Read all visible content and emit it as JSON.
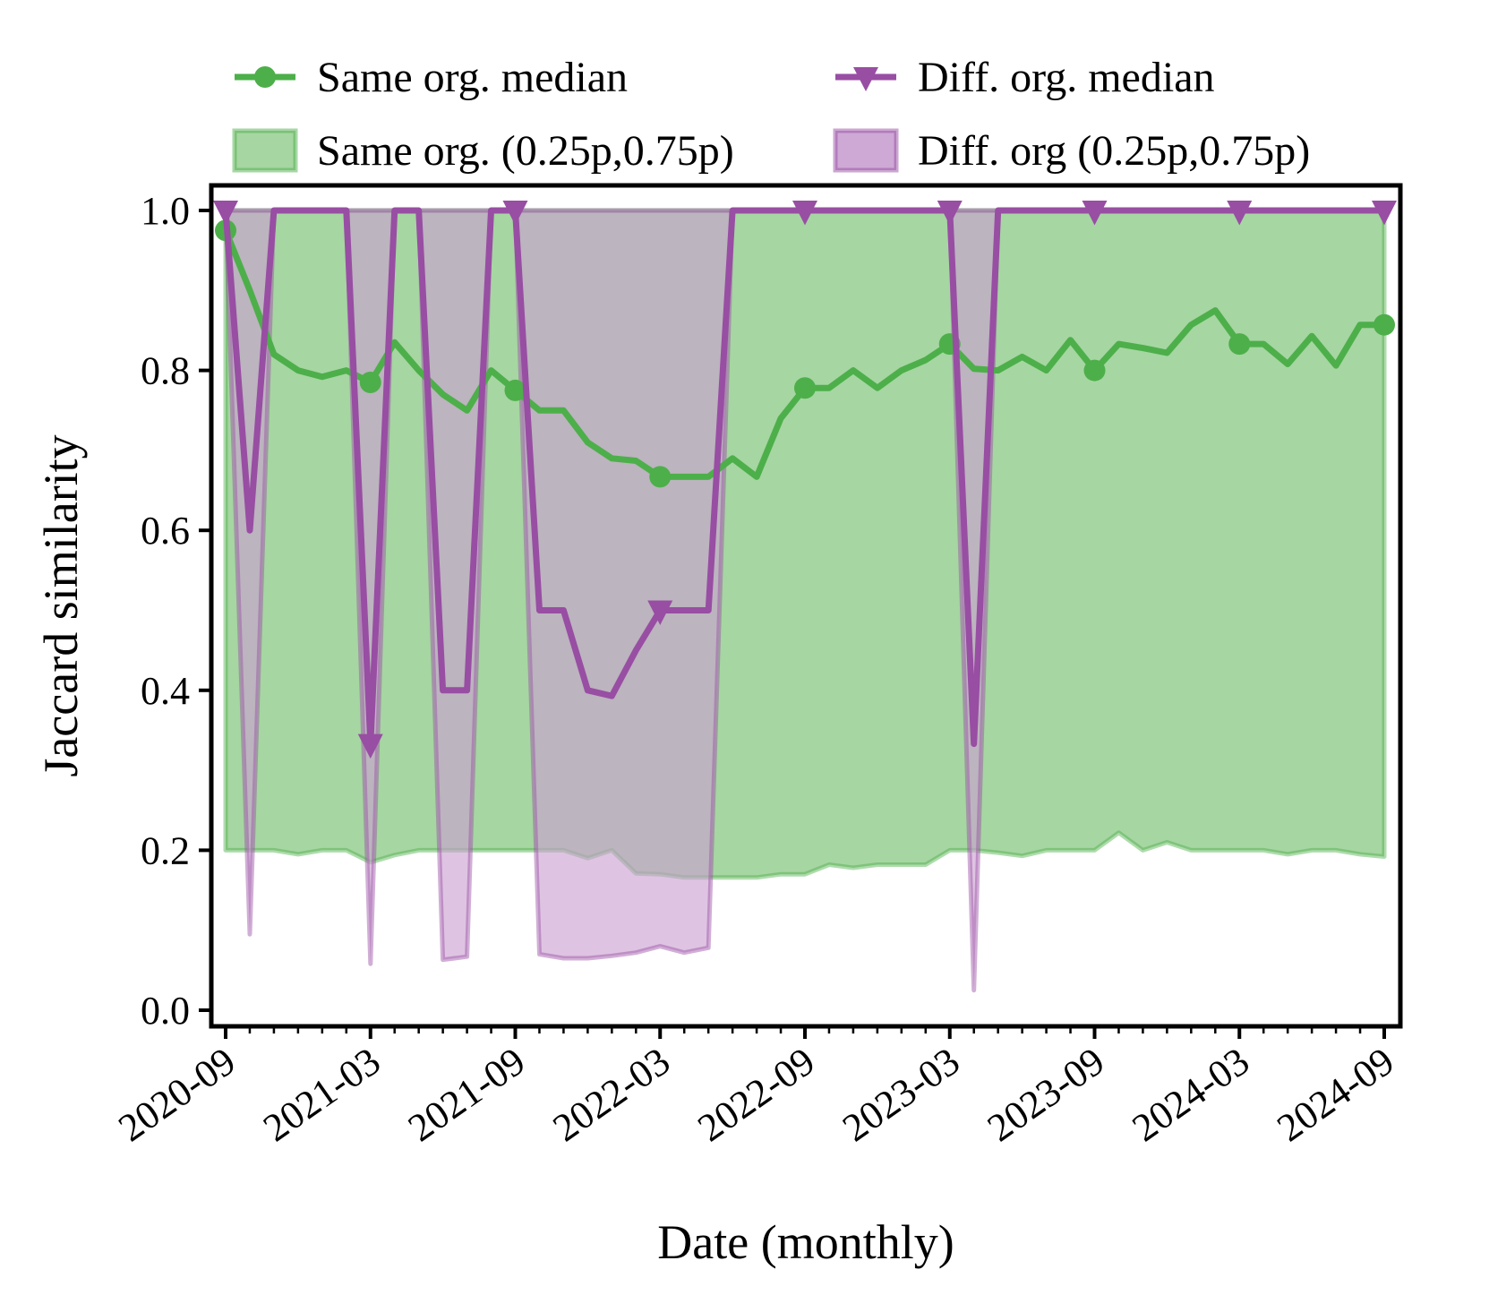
{
  "chart_data": {
    "type": "line",
    "title": "",
    "xlabel": "Date (monthly)",
    "ylabel": "Jaccard similarity",
    "ylim": [
      -0.02,
      1.03
    ],
    "yticks": [
      0.0,
      0.2,
      0.4,
      0.6,
      0.8,
      1.0
    ],
    "ytick_labels": [
      "0.0",
      "0.2",
      "0.4",
      "0.6",
      "0.8",
      "1.0"
    ],
    "xticks": [
      0,
      6,
      12,
      18,
      24,
      30,
      36,
      42,
      48
    ],
    "xtick_labels": [
      "2020-09",
      "2021-03",
      "2021-09",
      "2022-03",
      "2022-09",
      "2023-03",
      "2023-09",
      "2024-03",
      "2024-09"
    ],
    "x_month_index": [
      0,
      1,
      2,
      3,
      4,
      5,
      6,
      7,
      8,
      9,
      10,
      11,
      12,
      13,
      14,
      15,
      16,
      17,
      18,
      19,
      20,
      21,
      22,
      23,
      24,
      25,
      26,
      27,
      28,
      29,
      30,
      31,
      32,
      33,
      34,
      35,
      36,
      37,
      38,
      39,
      40,
      41,
      42,
      43,
      44,
      45,
      46,
      47,
      48
    ],
    "legend": {
      "position": "top",
      "entries": [
        "Same org. median",
        "Diff. org. median",
        "Same org. (0.25p,0.75p)",
        "Diff. org (0.25p,0.75p)"
      ]
    },
    "colors": {
      "same": "#4daf4a",
      "same_fill": "#a6d6a2",
      "diff": "#984ea3",
      "diff_fill": "#c9a0d0"
    },
    "series": [
      {
        "name": "Same org. median",
        "color": "#4daf4a",
        "marker": "circle",
        "markevery": 6,
        "values": [
          0.975,
          0.9,
          0.82,
          0.8,
          0.792,
          0.8,
          0.785,
          0.835,
          0.8,
          0.77,
          0.75,
          0.8,
          0.775,
          0.75,
          0.75,
          0.71,
          0.69,
          0.687,
          0.667,
          0.667,
          0.667,
          0.69,
          0.667,
          0.74,
          0.778,
          0.778,
          0.8,
          0.778,
          0.8,
          0.813,
          0.833,
          0.802,
          0.8,
          0.817,
          0.8,
          0.838,
          0.8,
          0.833,
          0.828,
          0.822,
          0.857,
          0.875,
          0.833,
          0.833,
          0.808,
          0.843,
          0.806,
          0.857,
          0.857
        ]
      },
      {
        "name": "Diff. org. median",
        "color": "#984ea3",
        "marker": "triangle-down",
        "markevery": 6,
        "values": [
          1.0,
          0.6,
          1.0,
          1.0,
          1.0,
          1.0,
          0.333,
          1.0,
          1.0,
          0.4,
          0.4,
          1.0,
          1.0,
          0.5,
          0.5,
          0.4,
          0.393,
          0.45,
          0.5,
          0.5,
          0.5,
          1.0,
          1.0,
          1.0,
          1.0,
          1.0,
          1.0,
          1.0,
          1.0,
          1.0,
          1.0,
          0.333,
          1.0,
          1.0,
          1.0,
          1.0,
          1.0,
          1.0,
          1.0,
          1.0,
          1.0,
          1.0,
          1.0,
          1.0,
          1.0,
          1.0,
          1.0,
          1.0,
          1.0
        ]
      }
    ],
    "bands": [
      {
        "name": "Same org. (0.25p,0.75p)",
        "color": "#4daf4a",
        "fill": "#a6d6a2",
        "lower": [
          0.2,
          0.2,
          0.2,
          0.195,
          0.2,
          0.2,
          0.185,
          0.194,
          0.2,
          0.2,
          0.2,
          0.2,
          0.2,
          0.2,
          0.2,
          0.19,
          0.2,
          0.171,
          0.17,
          0.166,
          0.166,
          0.166,
          0.166,
          0.17,
          0.17,
          0.182,
          0.178,
          0.182,
          0.182,
          0.182,
          0.2,
          0.2,
          0.197,
          0.193,
          0.2,
          0.2,
          0.2,
          0.222,
          0.2,
          0.21,
          0.2,
          0.2,
          0.2,
          0.2,
          0.195,
          0.2,
          0.2,
          0.195,
          0.192
        ],
        "upper": [
          1.0,
          1.0,
          1.0,
          1.0,
          1.0,
          1.0,
          1.0,
          1.0,
          1.0,
          1.0,
          1.0,
          1.0,
          1.0,
          1.0,
          1.0,
          1.0,
          1.0,
          1.0,
          1.0,
          1.0,
          1.0,
          1.0,
          1.0,
          1.0,
          1.0,
          1.0,
          1.0,
          1.0,
          1.0,
          1.0,
          1.0,
          1.0,
          1.0,
          1.0,
          1.0,
          1.0,
          1.0,
          1.0,
          1.0,
          1.0,
          1.0,
          1.0,
          1.0,
          1.0,
          1.0,
          1.0,
          1.0,
          1.0,
          1.0
        ]
      },
      {
        "name": "Diff. org (0.25p,0.75p)",
        "color": "#984ea3",
        "fill": "#c9a0d0",
        "lower": [
          1.0,
          0.095,
          1.0,
          1.0,
          1.0,
          1.0,
          0.058,
          1.0,
          1.0,
          0.063,
          0.067,
          1.0,
          1.0,
          0.07,
          0.065,
          0.065,
          0.068,
          0.072,
          0.08,
          0.072,
          0.078,
          1.0,
          1.0,
          1.0,
          1.0,
          1.0,
          1.0,
          1.0,
          1.0,
          1.0,
          1.0,
          0.025,
          1.0,
          1.0,
          1.0,
          1.0,
          1.0,
          1.0,
          1.0,
          1.0,
          1.0,
          1.0,
          1.0,
          1.0,
          1.0,
          1.0,
          1.0,
          1.0,
          1.0
        ],
        "upper": [
          1.0,
          1.0,
          1.0,
          1.0,
          1.0,
          1.0,
          1.0,
          1.0,
          1.0,
          1.0,
          1.0,
          1.0,
          1.0,
          1.0,
          1.0,
          1.0,
          1.0,
          1.0,
          1.0,
          1.0,
          1.0,
          1.0,
          1.0,
          1.0,
          1.0,
          1.0,
          1.0,
          1.0,
          1.0,
          1.0,
          1.0,
          1.0,
          1.0,
          1.0,
          1.0,
          1.0,
          1.0,
          1.0,
          1.0,
          1.0,
          1.0,
          1.0,
          1.0,
          1.0,
          1.0,
          1.0,
          1.0,
          1.0,
          1.0
        ]
      }
    ]
  }
}
